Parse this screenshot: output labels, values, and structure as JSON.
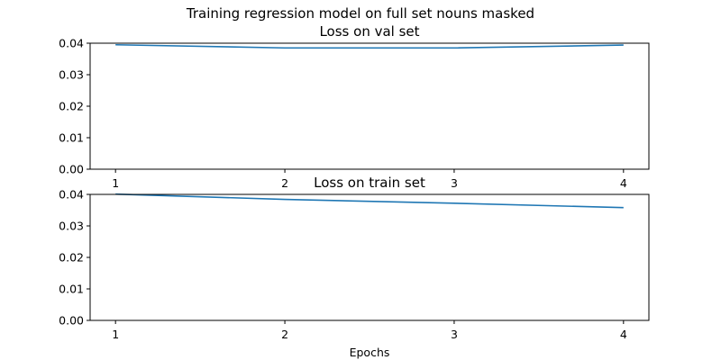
{
  "figure": {
    "suptitle": "Training regression model on full set nouns masked",
    "xlabel": "Epochs"
  },
  "chart_data": [
    {
      "type": "line",
      "title": "Loss on val set",
      "x": [
        1,
        2,
        3,
        4
      ],
      "series": [
        {
          "values": [
            0.0395,
            0.0385,
            0.0385,
            0.0394
          ],
          "color": "#1f77b4"
        }
      ],
      "xticks": [
        "1",
        "2",
        "3",
        "4"
      ],
      "yticks": [
        "0.00",
        "0.01",
        "0.02",
        "0.03",
        "0.04"
      ],
      "xlim": [
        0.85,
        4.15
      ],
      "ylim": [
        0,
        0.04
      ],
      "grid": false
    },
    {
      "type": "line",
      "title": "Loss on train set",
      "x": [
        1,
        2,
        3,
        4
      ],
      "series": [
        {
          "values": [
            0.0401,
            0.0384,
            0.0372,
            0.0358
          ],
          "color": "#1f77b4"
        }
      ],
      "xticks": [
        "1",
        "2",
        "3",
        "4"
      ],
      "yticks": [
        "0.00",
        "0.01",
        "0.02",
        "0.03",
        "0.04"
      ],
      "xlim": [
        0.85,
        4.15
      ],
      "ylim": [
        0,
        0.04
      ],
      "grid": false,
      "xlabel": "Epochs"
    }
  ]
}
